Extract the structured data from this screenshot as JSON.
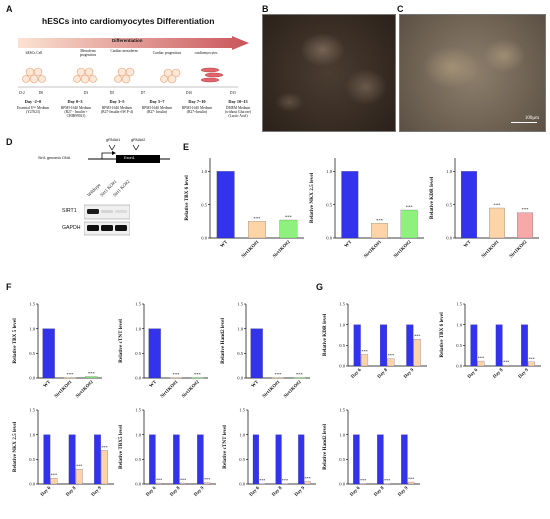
{
  "panel_letters": {
    "a": "A",
    "b": "B",
    "c": "C",
    "d": "D",
    "e": "E",
    "f": "F",
    "g": "G"
  },
  "panelA": {
    "title": "hESCs into cardiomyocytes Differentiation",
    "arrow_label": "Differentiation",
    "cells": [
      "hESCs Cell",
      "Mesoderm progenitors",
      "Cardiac mesoderm",
      "Cardiac progenitors",
      "cardiomyocytes"
    ],
    "ticks": [
      "D-2",
      "D0",
      "D3",
      "D5",
      "D7",
      "D10",
      "D15"
    ],
    "stages": [
      {
        "day": "Day -2~0",
        "medium": "Essential 8™ Medium (Y27623)"
      },
      {
        "day": "Day 0~3",
        "medium": "RPMI-1640 Medium (B27 - Insulin + CHIR99021)"
      },
      {
        "day": "Day 3~5",
        "medium": "RPMI-1640 Medium (B27-Insulin+IW P-4)"
      },
      {
        "day": "Day 5~7",
        "medium": "RPMI-1640 Medium (B27- Insulin)"
      },
      {
        "day": "Day 7~10",
        "medium": "RPMI-1640 Medium (B27+Insulin)"
      },
      {
        "day": "Day 10~15",
        "medium": "DMEM Medium (without Glucose) (Lactic Acid)"
      }
    ],
    "colors": {
      "arrow": "#c9545a",
      "cell": "#e8a27a"
    }
  },
  "panelC": {
    "scalebar": "100μm"
  },
  "panelD": {
    "grna1": "gRNA#1",
    "grna2": "gRNA#2",
    "gene": "Sirt1 genomic DNA",
    "exon": "Exon1",
    "lanes": [
      "Wildtype",
      "Sirt1 KO#1",
      "Sirt1 KO#2"
    ],
    "blots": [
      "SIRT1",
      "GAPDH"
    ]
  },
  "significance": "***",
  "colors": {
    "blue": "#3333ee",
    "peach": "#fdd4a7",
    "green": "#8ef07d",
    "pink": "#f7a8a8"
  },
  "chart_data": [
    {
      "id": "E1",
      "type": "bar",
      "ylabel": "Relative TBX 6 level",
      "ylim": [
        0,
        1.2
      ],
      "ticks": [
        0.0,
        0.5,
        1.0
      ],
      "categories": [
        "WT",
        "Sirt1KO#1",
        "Sirt1KO#2"
      ],
      "values": [
        1.0,
        0.25,
        0.27
      ],
      "colors": [
        "#3333ee",
        "#fdd4a7",
        "#8ef07d"
      ],
      "sig": [
        "",
        "***",
        "***"
      ]
    },
    {
      "id": "E2",
      "type": "bar",
      "ylabel": "Relative NKX 2.5 level",
      "ylim": [
        0,
        1.2
      ],
      "ticks": [
        0.0,
        0.5,
        1.0
      ],
      "categories": [
        "WT",
        "Sirt1KO#1",
        "Sirt1KO#2"
      ],
      "values": [
        1.0,
        0.22,
        0.42
      ],
      "colors": [
        "#3333ee",
        "#fdd4a7",
        "#8ef07d"
      ],
      "sig": [
        "",
        "***",
        "***"
      ]
    },
    {
      "id": "E3",
      "type": "bar",
      "ylabel": "Relative KDR level",
      "ylim": [
        0,
        1.2
      ],
      "ticks": [
        0.0,
        0.5,
        1.0
      ],
      "categories": [
        "WT",
        "Sirt1KO#1",
        "Sirt1KO#2"
      ],
      "values": [
        1.0,
        0.45,
        0.38
      ],
      "colors": [
        "#3333ee",
        "#fdd4a7",
        "#f7a8a8"
      ],
      "sig": [
        "",
        "***",
        "***"
      ]
    },
    {
      "id": "F1",
      "type": "bar",
      "ylabel": "Relative TBX 5 level",
      "ylim": [
        0,
        1.5
      ],
      "ticks": [
        0.0,
        0.5,
        1.0,
        1.5
      ],
      "categories": [
        "WT",
        "Sirt1KO#1",
        "Sirt1KO#2"
      ],
      "values": [
        1.0,
        0.01,
        0.03
      ],
      "colors": [
        "#3333ee",
        "#fdd4a7",
        "#8ef07d"
      ],
      "sig": [
        "",
        "***",
        "***"
      ]
    },
    {
      "id": "F2",
      "type": "bar",
      "ylabel": "Relative cTNT level",
      "ylim": [
        0,
        1.5
      ],
      "ticks": [
        0.0,
        0.5,
        1.0,
        1.5
      ],
      "categories": [
        "WT",
        "Sirt1KO#1",
        "Sirt1KO#2"
      ],
      "values": [
        1.0,
        0.01,
        0.01
      ],
      "colors": [
        "#3333ee",
        "#fdd4a7",
        "#8ef07d"
      ],
      "sig": [
        "",
        "***",
        "***"
      ]
    },
    {
      "id": "F3",
      "type": "bar",
      "ylabel": "Relative Hand2 level",
      "ylim": [
        0,
        1.5
      ],
      "ticks": [
        0.0,
        0.5,
        1.0,
        1.5
      ],
      "categories": [
        "WT",
        "Sirt1KO#1",
        "Sirt1KO#2"
      ],
      "values": [
        1.0,
        0.01,
        0.01
      ],
      "colors": [
        "#3333ee",
        "#fdd4a7",
        "#8ef07d"
      ],
      "sig": [
        "",
        "***",
        "***"
      ]
    },
    {
      "id": "G1",
      "type": "bar",
      "ylabel": "Relative KDR level",
      "ylim": [
        0,
        1.5
      ],
      "ticks": [
        0.0,
        0.5,
        1.0,
        1.5
      ],
      "categories": [
        "Day 6",
        "Day 8",
        "Day 9"
      ],
      "series": [
        {
          "values": [
            1.0,
            1.0,
            1.0
          ]
        },
        {
          "values": [
            0.28,
            0.18,
            0.65
          ]
        }
      ],
      "colors": [
        "#3333ee",
        "#fdd4a7"
      ],
      "sig": [
        "***",
        "***",
        "***"
      ]
    },
    {
      "id": "G2",
      "type": "bar",
      "ylabel": "Relative TBX 6 level",
      "ylim": [
        0,
        1.5
      ],
      "ticks": [
        0.0,
        0.5,
        1.0,
        1.5
      ],
      "categories": [
        "Day 6",
        "Day 8",
        "Day 9"
      ],
      "series": [
        {
          "values": [
            1.0,
            1.0,
            1.0
          ]
        },
        {
          "values": [
            0.12,
            0.02,
            0.1
          ]
        }
      ],
      "colors": [
        "#3333ee",
        "#fdd4a7"
      ],
      "sig": [
        "***",
        "***",
        "***"
      ]
    },
    {
      "id": "G3",
      "type": "bar",
      "ylabel": "Relative NKX 2.5 level",
      "ylim": [
        0,
        1.5
      ],
      "ticks": [
        0.0,
        0.5,
        1.0,
        1.5
      ],
      "categories": [
        "Day 6",
        "Day 8",
        "Day 9"
      ],
      "series": [
        {
          "values": [
            1.0,
            1.0,
            1.0
          ]
        },
        {
          "values": [
            0.12,
            0.3,
            0.68
          ]
        }
      ],
      "colors": [
        "#3333ee",
        "#fdd4a7"
      ],
      "sig": [
        "***",
        "***",
        "***"
      ]
    },
    {
      "id": "G4",
      "type": "bar",
      "ylabel": "Relative TBX5 level",
      "ylim": [
        0,
        1.5
      ],
      "ticks": [
        0.0,
        0.5,
        1.0,
        1.5
      ],
      "categories": [
        "Day 6",
        "Day 8",
        "Day 9"
      ],
      "series": [
        {
          "values": [
            1.0,
            1.0,
            1.0
          ]
        },
        {
          "values": [
            0.02,
            0.02,
            0.03
          ]
        }
      ],
      "colors": [
        "#3333ee",
        "#fdd4a7"
      ],
      "sig": [
        "***",
        "***",
        "***"
      ]
    },
    {
      "id": "G5",
      "type": "bar",
      "ylabel": "Relative cTNT level",
      "ylim": [
        0,
        1.5
      ],
      "ticks": [
        0.0,
        0.5,
        1.0,
        1.5
      ],
      "categories": [
        "Day 6",
        "Day 8",
        "Day 9"
      ],
      "series": [
        {
          "values": [
            1.0,
            1.0,
            1.0
          ]
        },
        {
          "values": [
            0.01,
            0.01,
            0.05
          ]
        }
      ],
      "colors": [
        "#3333ee",
        "#fdd4a7"
      ],
      "sig": [
        "***",
        "***",
        "***"
      ]
    },
    {
      "id": "G6",
      "type": "bar",
      "ylabel": "Relative Hand2 level",
      "ylim": [
        0,
        1.5
      ],
      "ticks": [
        0.0,
        0.5,
        1.0,
        1.5
      ],
      "categories": [
        "Day 6",
        "Day 8",
        "Day 9"
      ],
      "series": [
        {
          "values": [
            1.0,
            1.0,
            1.0
          ]
        },
        {
          "values": [
            0.01,
            0.01,
            0.04
          ]
        }
      ],
      "colors": [
        "#3333ee",
        "#fdd4a7"
      ],
      "sig": [
        "***",
        "***",
        "***"
      ]
    }
  ]
}
